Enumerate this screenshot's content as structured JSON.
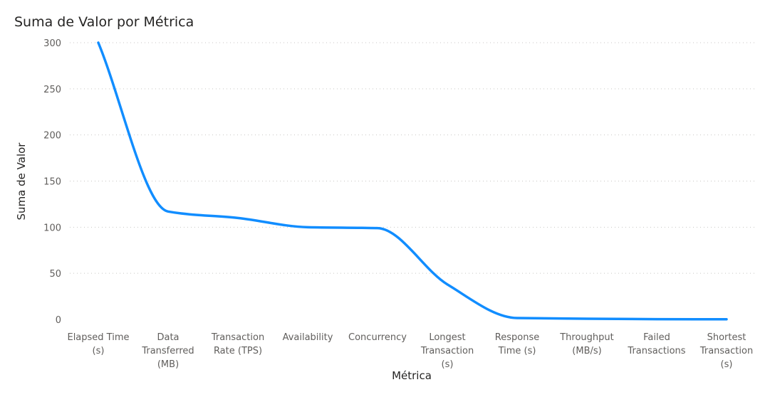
{
  "chart_data": {
    "type": "line",
    "title": "Suma de Valor por Métrica",
    "xlabel": "Métrica",
    "ylabel": "Suma de Valor",
    "categories": [
      [
        "Elapsed Time",
        "(s)"
      ],
      [
        "Data",
        "Transferred",
        "(MB)"
      ],
      [
        "Transaction",
        "Rate (TPS)"
      ],
      [
        "Availability"
      ],
      [
        "Concurrency"
      ],
      [
        "Longest",
        "Transaction",
        "(s)"
      ],
      [
        "Response",
        "Time (s)"
      ],
      [
        "Throughput",
        "(MB/s)"
      ],
      [
        "Failed",
        "Transactions"
      ],
      [
        "Shortest",
        "Transaction",
        "(s)"
      ]
    ],
    "values": [
      300,
      117,
      110,
      100,
      99,
      38,
      1.5,
      0.8,
      0.3,
      0.2
    ],
    "y_ticks": [
      0,
      50,
      100,
      150,
      200,
      250,
      300
    ],
    "ylim": [
      0,
      300
    ],
    "grid": true,
    "line_color": "#118DFF"
  }
}
